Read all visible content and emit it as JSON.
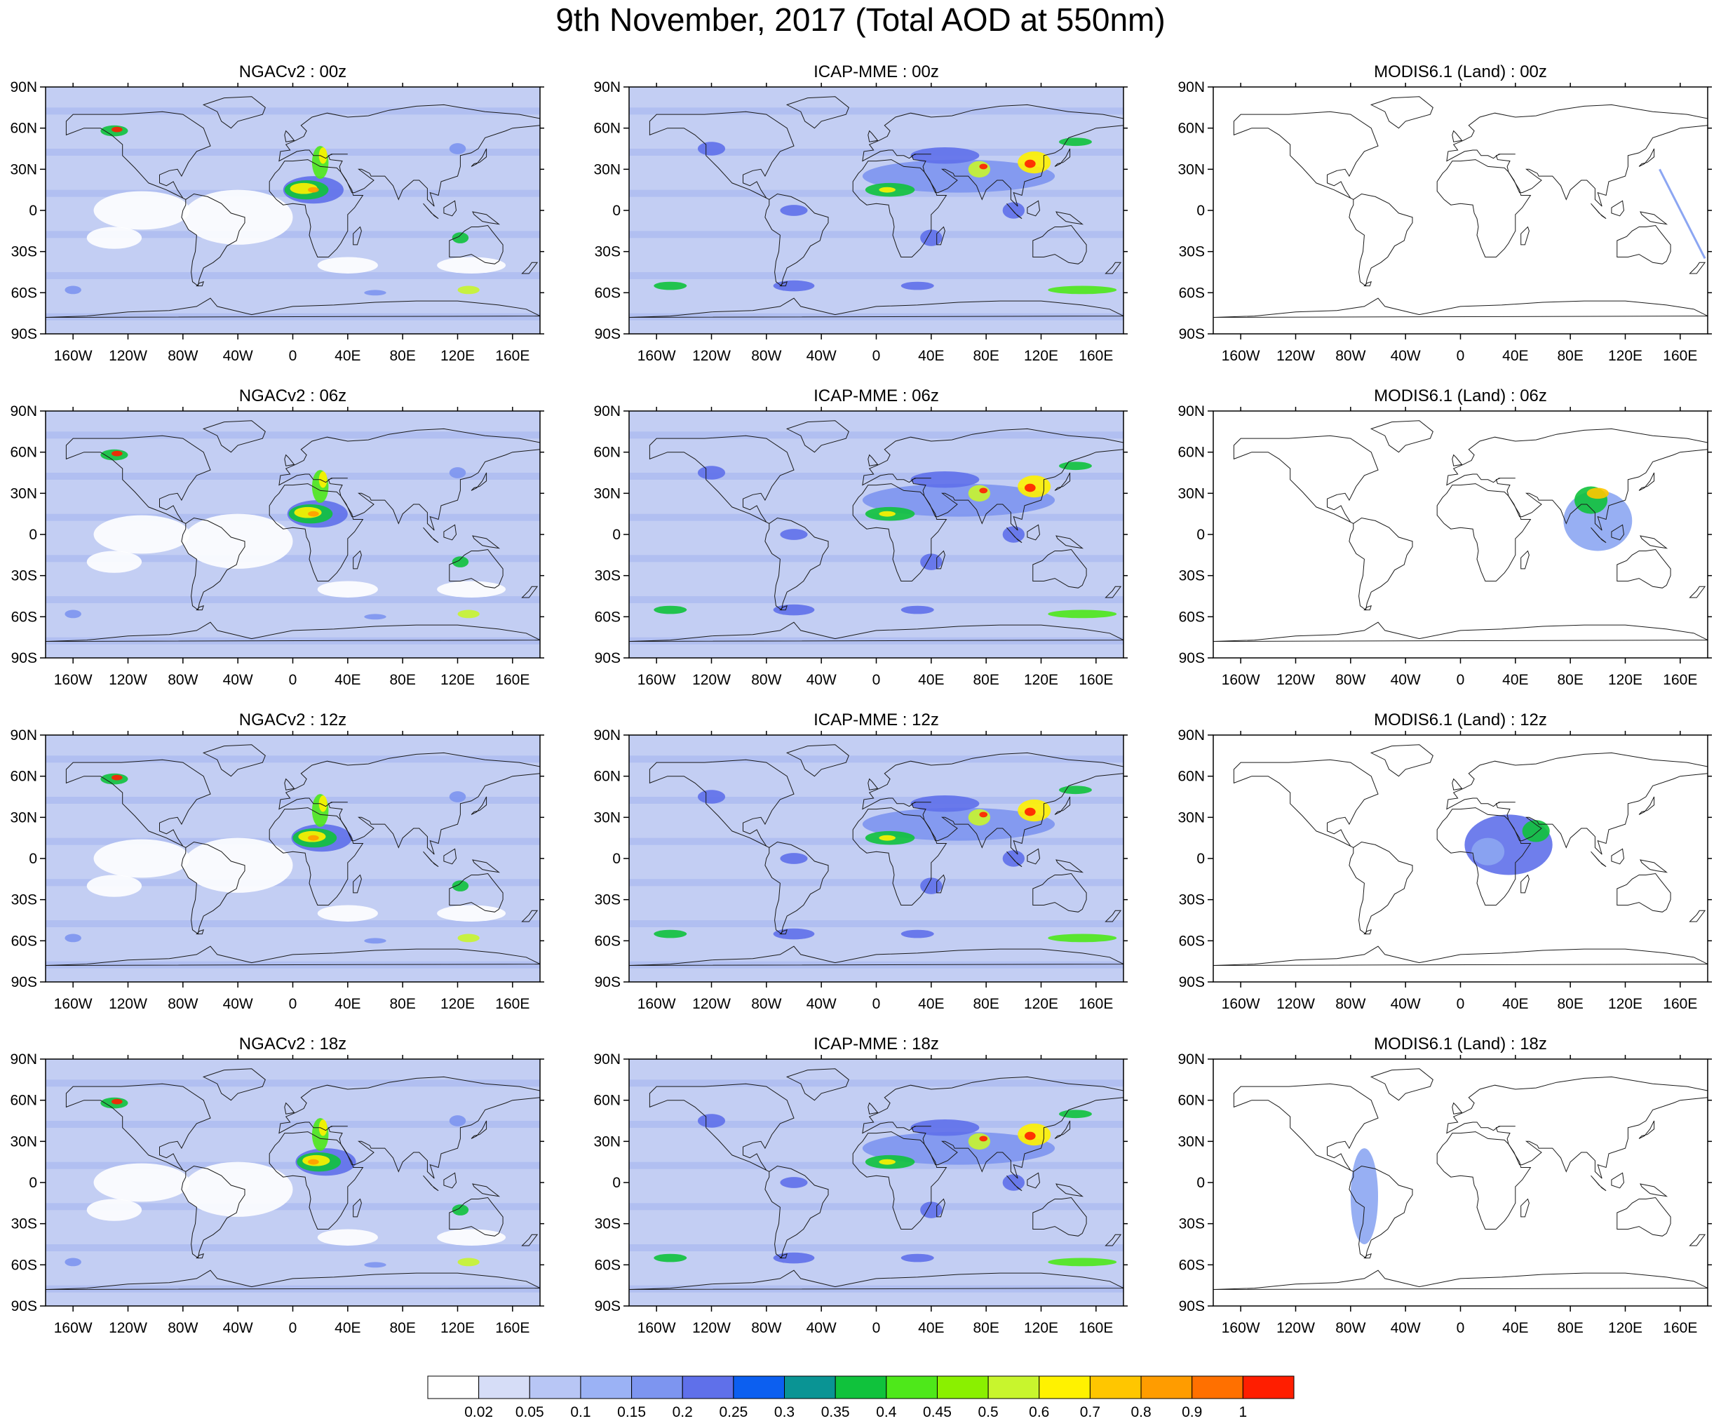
{
  "title": "9th November, 2017 (Total AOD at 550nm)",
  "axis_ticks": {
    "latitude": [
      "90N",
      "60N",
      "30N",
      "0",
      "30S",
      "60S",
      "90S"
    ],
    "longitude": [
      "160W",
      "120W",
      "80W",
      "40W",
      "0",
      "40E",
      "80E",
      "120E",
      "160E"
    ]
  },
  "panels": [
    {
      "title": "NGACv2 : 00z",
      "model": "NGACv2",
      "time": "00z"
    },
    {
      "title": "ICAP-MME : 00z",
      "model": "ICAP-MME",
      "time": "00z"
    },
    {
      "title": "MODIS6.1 (Land) : 00z",
      "model": "MODIS6.1 (Land)",
      "time": "00z"
    },
    {
      "title": "NGACv2 : 06z",
      "model": "NGACv2",
      "time": "06z"
    },
    {
      "title": "ICAP-MME : 06z",
      "model": "ICAP-MME",
      "time": "06z"
    },
    {
      "title": "MODIS6.1 (Land) : 06z",
      "model": "MODIS6.1 (Land)",
      "time": "06z"
    },
    {
      "title": "NGACv2 : 12z",
      "model": "NGACv2",
      "time": "12z"
    },
    {
      "title": "ICAP-MME : 12z",
      "model": "ICAP-MME",
      "time": "12z"
    },
    {
      "title": "MODIS6.1 (Land) : 12z",
      "model": "MODIS6.1 (Land)",
      "time": "12z"
    },
    {
      "title": "NGACv2 : 18z",
      "model": "NGACv2",
      "time": "18z"
    },
    {
      "title": "ICAP-MME : 18z",
      "model": "ICAP-MME",
      "time": "18z"
    },
    {
      "title": "MODIS6.1 (Land) : 18z",
      "model": "MODIS6.1 (Land)",
      "time": "18z"
    }
  ],
  "colorbar": {
    "labels": [
      "0.02",
      "0.05",
      "0.1",
      "0.15",
      "0.2",
      "0.25",
      "0.3",
      "0.35",
      "0.4",
      "0.45",
      "0.5",
      "0.6",
      "0.7",
      "0.8",
      "0.9",
      "1"
    ],
    "colors": [
      "#ffffff",
      "#d6ddf7",
      "#b8c6f5",
      "#9bb2f5",
      "#7d95f0",
      "#5f70ea",
      "#0c5ff0",
      "#0a9494",
      "#10c23c",
      "#4ee81a",
      "#8af000",
      "#c8f52d",
      "#fff200",
      "#ffc600",
      "#ff9c00",
      "#ff7000",
      "#ff1e00"
    ]
  },
  "style": {
    "ocean_background": "#c3cef3",
    "medium_aod": "#8fa4ee",
    "coastline": "#1a1a1a",
    "swath_blue": "#8ca6f2"
  }
}
